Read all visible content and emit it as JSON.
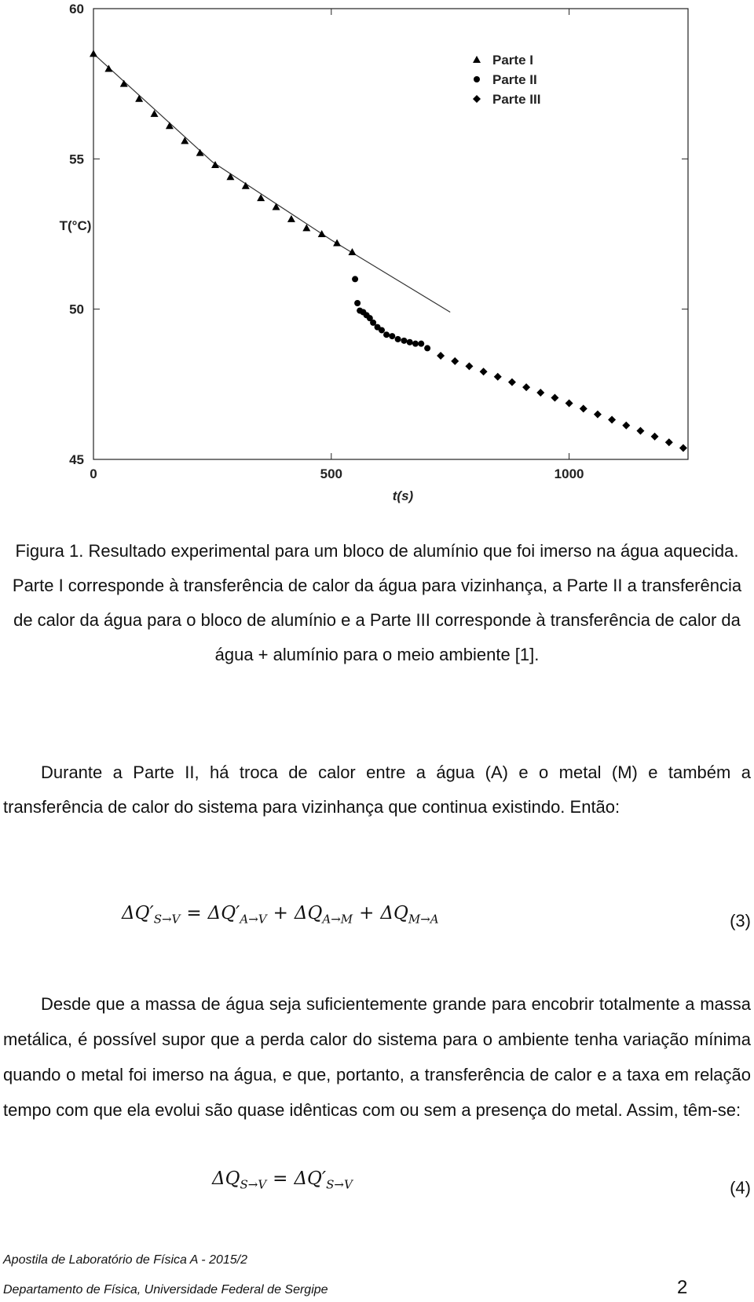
{
  "chart_data": {
    "type": "scatter",
    "xlabel": "t(s)",
    "ylabel": "T(°C)",
    "xlim": [
      0,
      1250
    ],
    "ylim": [
      45,
      60
    ],
    "xticks": [
      0,
      500,
      1000
    ],
    "yticks": [
      45,
      50,
      55,
      60
    ],
    "legend": "upper right",
    "series": [
      {
        "name": "Parte I",
        "color": "#000000",
        "marker": "triangle",
        "x": [
          0,
          32,
          64,
          96,
          128,
          160,
          192,
          224,
          256,
          288,
          320,
          352,
          384,
          416,
          448,
          480,
          512,
          544
        ],
        "values": [
          58.5,
          58.0,
          57.5,
          57.0,
          56.5,
          56.1,
          55.6,
          55.2,
          54.8,
          54.4,
          54.1,
          53.7,
          53.4,
          53.0,
          52.7,
          52.5,
          52.2,
          51.9
        ]
      },
      {
        "name": "Parte II",
        "color": "#000000",
        "marker": "circle",
        "x": [
          550,
          555,
          560,
          567,
          574,
          581,
          588,
          597,
          606,
          616,
          628,
          640,
          653,
          665,
          677,
          689,
          702
        ],
        "values": [
          51.0,
          50.2,
          49.95,
          49.9,
          49.8,
          49.7,
          49.55,
          49.4,
          49.3,
          49.15,
          49.1,
          49.0,
          48.95,
          48.9,
          48.85,
          48.85,
          48.7
        ]
      },
      {
        "name": "Parte III",
        "color": "#000000",
        "marker": "diamond",
        "x": [
          730,
          760,
          790,
          820,
          850,
          880,
          910,
          940,
          970,
          1000,
          1030,
          1060,
          1090,
          1120,
          1150,
          1180,
          1210,
          1240
        ],
        "values": [
          48.45,
          48.27,
          48.1,
          47.92,
          47.75,
          47.57,
          47.4,
          47.22,
          47.05,
          46.87,
          46.69,
          46.5,
          46.32,
          46.13,
          45.95,
          45.76,
          45.57,
          45.38
        ]
      }
    ],
    "fit": {
      "color": "#333333",
      "x": [
        0,
        250,
        500,
        750
      ],
      "values": [
        58.5,
        54.9,
        52.3,
        49.9
      ]
    }
  },
  "caption": "Figura 1. Resultado experimental para um bloco de alumínio que foi imerso na água aquecida. Parte I corresponde à transferência de calor da água para vizinhança, a Parte II a transferência de calor da água para o bloco de alumínio e a Parte III corresponde à transferência de calor da água + alumínio para o meio ambiente [1].",
  "paragraph_1": "Durante a Parte II, há troca de calor entre a água (A) e o metal (M) e também a transferência de calor do sistema para vizinhança que continua existindo. Então:",
  "equation_3": {
    "terms": [
      {
        "base": "ΔQ′",
        "sub": "S→V"
      },
      {
        "base": "ΔQ′",
        "sub": "A→V"
      },
      {
        "base": "ΔQ",
        "sub": "A→M"
      },
      {
        "base": "ΔQ",
        "sub": "M→A"
      }
    ],
    "operators": [
      "=",
      "+",
      "+"
    ],
    "number": "(3)"
  },
  "paragraph_2": "Desde que a massa de água seja suficientemente grande para encobrir totalmente a massa metálica, é possível supor que a perda calor do sistema para o ambiente tenha variação mínima quando o metal foi imerso na água, e que, portanto, a transferência de calor e a taxa em relação tempo com que ela evolui são quase idênticas com ou sem a presença do metal. Assim, têm-se:",
  "equation_4": {
    "terms": [
      {
        "base": "ΔQ",
        "sub": "S→V"
      },
      {
        "base": "ΔQ′",
        "sub": "S→V"
      }
    ],
    "operators": [
      "="
    ],
    "number": "(4)"
  },
  "footer": {
    "line_1": "Apostila de Laboratório de Física A - 2015/2",
    "line_2": "Departamento de Física, Universidade Federal de Sergipe",
    "page": "2"
  }
}
